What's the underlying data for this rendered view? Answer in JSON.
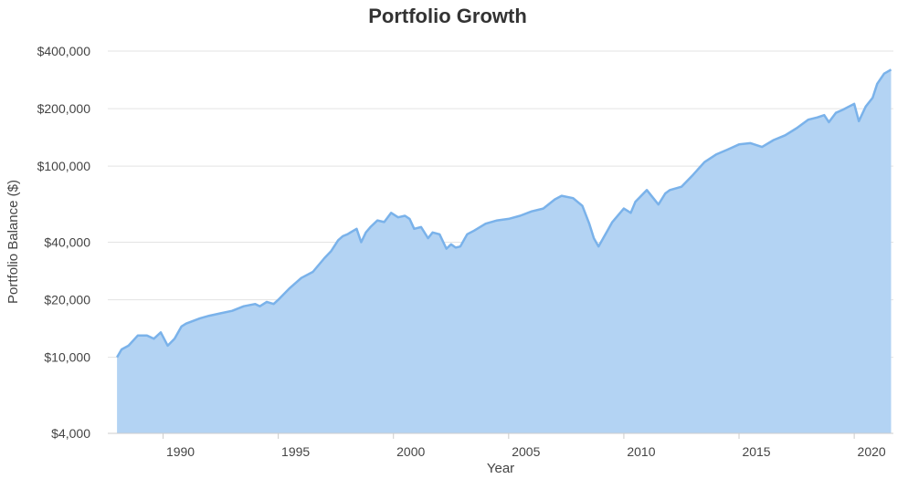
{
  "chart_data": {
    "type": "area",
    "title": "Portfolio Growth",
    "xlabel": "Year",
    "ylabel": "Portfolio Balance ($)",
    "y_scale": "log",
    "ylim": [
      4000,
      400000
    ],
    "xlim": [
      1987.6,
      2021.7
    ],
    "grid": true,
    "colors": {
      "fill": "#b3d3f3",
      "line": "#7ab2ea",
      "grid": "#e3e3e3"
    },
    "x_ticks": [
      {
        "value": 1990,
        "label": "1990"
      },
      {
        "value": 1995,
        "label": "1995"
      },
      {
        "value": 2000,
        "label": "2000"
      },
      {
        "value": 2005,
        "label": "2005"
      },
      {
        "value": 2010,
        "label": "2010"
      },
      {
        "value": 2015,
        "label": "2015"
      },
      {
        "value": 2020,
        "label": "2020"
      }
    ],
    "y_ticks": [
      {
        "value": 4000,
        "label": "$4,000"
      },
      {
        "value": 10000,
        "label": "$10,000"
      },
      {
        "value": 20000,
        "label": "$20,000"
      },
      {
        "value": 40000,
        "label": "$40,000"
      },
      {
        "value": 100000,
        "label": "$100,000"
      },
      {
        "value": 200000,
        "label": "$200,000"
      },
      {
        "value": 400000,
        "label": "$400,000"
      }
    ],
    "series": [
      {
        "x": [
          1988.0,
          1988.2,
          1988.5,
          1988.9,
          1989.3,
          1989.6,
          1989.9,
          1990.2,
          1990.5,
          1990.8,
          1991.0,
          1991.3,
          1991.6,
          1992.0,
          1992.5,
          1993.0,
          1993.5,
          1994.0,
          1994.2,
          1994.5,
          1994.8,
          1995.0,
          1995.5,
          1996.0,
          1996.5,
          1997.0,
          1997.3,
          1997.6,
          1997.8,
          1998.0,
          1998.4,
          1998.6,
          1998.8,
          1999.0,
          1999.3,
          1999.6,
          1999.9,
          2000.2,
          2000.5,
          2000.7,
          2000.9,
          2001.2,
          2001.5,
          2001.7,
          2002.0,
          2002.3,
          2002.5,
          2002.7,
          2002.9,
          2003.2,
          2003.5,
          2004.0,
          2004.5,
          2005.0,
          2005.5,
          2006.0,
          2006.5,
          2007.0,
          2007.3,
          2007.8,
          2008.2,
          2008.5,
          2008.7,
          2008.9,
          2009.2,
          2009.5,
          2010.0,
          2010.3,
          2010.5,
          2011.0,
          2011.5,
          2011.8,
          2012.0,
          2012.5,
          2013.0,
          2013.5,
          2014.0,
          2014.5,
          2015.0,
          2015.5,
          2016.0,
          2016.5,
          2017.0,
          2017.5,
          2018.0,
          2018.4,
          2018.7,
          2018.9,
          2019.2,
          2019.5,
          2020.0,
          2020.2,
          2020.5,
          2020.8,
          2021.0,
          2021.3,
          2021.6
        ],
        "y": [
          10000,
          11000,
          11500,
          13000,
          13000,
          12500,
          13500,
          11500,
          12500,
          14500,
          15000,
          15500,
          16000,
          16500,
          17000,
          17500,
          18500,
          19000,
          18500,
          19500,
          19000,
          20000,
          23000,
          26000,
          28000,
          33000,
          36000,
          41000,
          43000,
          44000,
          47000,
          40000,
          45000,
          48000,
          52000,
          51000,
          57000,
          54000,
          55000,
          53000,
          47000,
          48000,
          42000,
          45000,
          44000,
          37000,
          39000,
          37500,
          38000,
          44000,
          46000,
          50000,
          52000,
          53000,
          55000,
          58000,
          60000,
          67000,
          70000,
          68000,
          62000,
          50000,
          42000,
          38000,
          44000,
          51000,
          60000,
          57000,
          65000,
          75000,
          63000,
          72000,
          75000,
          78000,
          90000,
          105000,
          115000,
          122000,
          130000,
          132000,
          126000,
          137000,
          145000,
          158000,
          175000,
          180000,
          185000,
          170000,
          190000,
          197000,
          212000,
          172000,
          205000,
          228000,
          270000,
          305000,
          320000
        ]
      }
    ]
  }
}
